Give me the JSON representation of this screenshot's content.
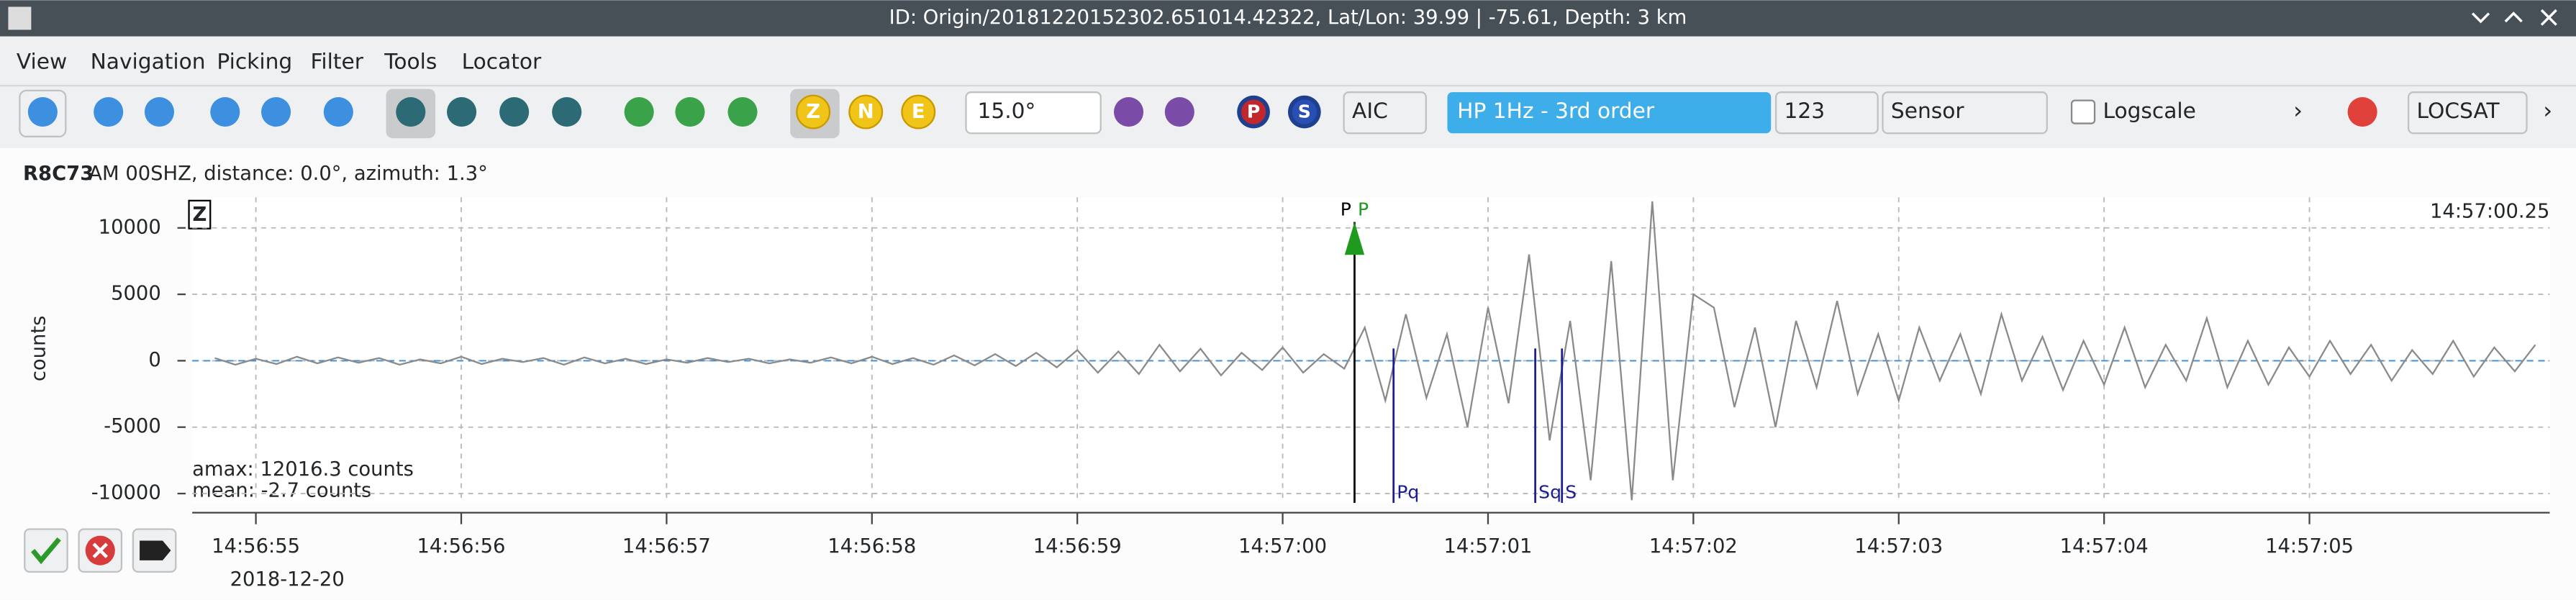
{
  "window": {
    "title": "ID: Origin/20181220152302.651014.42322, Lat/Lon: 39.99 | -75.61, Depth: 3 km",
    "menu": [
      "View",
      "Navigation",
      "Picking",
      "Filter",
      "Tools",
      "Locator"
    ],
    "toolbar": {
      "pick_buttons": [
        "P",
        "S"
      ],
      "component_buttons": [
        "Z",
        "N",
        "E"
      ],
      "spin": "15.0°",
      "picker": "AIC",
      "filter": "HP 1Hz - 3rd order",
      "amp_combo": "123",
      "unit_combo": "Sensor",
      "logscale": "Logscale",
      "locator": "LOCSAT"
    },
    "trace": {
      "station": "R8C73",
      "info": "AM  00SHZ, distance: 0.0°, azimuth: 1.3°"
    }
  },
  "chart_data": {
    "type": "line",
    "component": "Z",
    "ylabel": "counts",
    "time_label": "14:57:00.25",
    "date": "2018-12-20",
    "stats": [
      "amax: 12016.3 counts",
      "mean: -2.7 counts"
    ],
    "color": "#8a8a8a",
    "x": [
      53814.8,
      53814.9,
      53815.0,
      53815.1,
      53815.2,
      53815.3,
      53815.4,
      53815.5,
      53815.6,
      53815.7,
      53815.8,
      53815.9,
      53816.0,
      53816.1,
      53816.2,
      53816.3,
      53816.4,
      53816.5,
      53816.6,
      53816.7,
      53816.8,
      53816.9,
      53817.0,
      53817.1,
      53817.2,
      53817.3,
      53817.4,
      53817.5,
      53817.6,
      53817.7,
      53817.8,
      53817.9,
      53818.0,
      53818.1,
      53818.2,
      53818.3,
      53818.4,
      53818.5,
      53818.6,
      53818.7,
      53818.8,
      53818.9,
      53819.0,
      53819.1,
      53819.2,
      53819.3,
      53819.4,
      53819.5,
      53819.6,
      53819.7,
      53819.8,
      53819.9,
      53820.0,
      53820.1,
      53820.2,
      53820.3,
      53820.4,
      53820.5,
      53820.6,
      53820.7,
      53820.8,
      53820.9,
      53821.0,
      53821.1,
      53821.2,
      53821.3,
      53821.4,
      53821.5,
      53821.6,
      53821.7,
      53821.8,
      53821.9,
      53822.0,
      53822.1,
      53822.2,
      53822.3,
      53822.4,
      53822.5,
      53822.6,
      53822.7,
      53822.8,
      53822.9,
      53823.0,
      53823.1,
      53823.2,
      53823.3,
      53823.4,
      53823.5,
      53823.6,
      53823.7,
      53823.8,
      53823.9,
      53824.0,
      53824.1,
      53824.2,
      53824.3,
      53824.4,
      53824.5,
      53824.6,
      53824.7,
      53824.8,
      53824.9,
      53825.0,
      53825.1,
      53825.2,
      53825.3,
      53825.4,
      53825.5,
      53825.6,
      53825.7,
      53825.8,
      53825.9,
      53826.0,
      53826.1
    ],
    "values": [
      200,
      -300,
      150,
      -250,
      300,
      -200,
      250,
      -150,
      200,
      -300,
      100,
      -200,
      300,
      -250,
      150,
      -100,
      200,
      -300,
      250,
      -200,
      150,
      -250,
      100,
      -150,
      200,
      -100,
      150,
      -200,
      100,
      -150,
      250,
      -200,
      300,
      -250,
      200,
      -300,
      400,
      -350,
      500,
      -400,
      600,
      -500,
      800,
      -900,
      700,
      -1000,
      1200,
      -800,
      900,
      -1100,
      600,
      -700,
      1000,
      -900,
      500,
      -600,
      2500,
      -3000,
      3500,
      -2800,
      2000,
      -5000,
      4000,
      -3200,
      8000,
      -6000,
      3000,
      -9000,
      7500,
      -10500,
      12000,
      -9000,
      5000,
      4000,
      -3500,
      2500,
      -5000,
      3000,
      -2000,
      4500,
      -2500,
      2000,
      -3000,
      2500,
      -1500,
      2000,
      -2500,
      3500,
      -1500,
      1800,
      -2200,
      1500,
      -1800,
      2500,
      -2000,
      1200,
      -1500,
      3200,
      -2000,
      1500,
      -1800,
      1000,
      -1200,
      1500,
      -1000,
      1200,
      -1500,
      800,
      -1000,
      1500,
      -1200,
      1000,
      -800,
      1200
    ],
    "xlim": [
      53814.69,
      53826.17
    ],
    "xticks": [
      {
        "value": 53815,
        "label": "14:56:55"
      },
      {
        "value": 53816,
        "label": "14:56:56"
      },
      {
        "value": 53817,
        "label": "14:56:57"
      },
      {
        "value": 53818,
        "label": "14:56:58"
      },
      {
        "value": 53819,
        "label": "14:56:59"
      },
      {
        "value": 53820,
        "label": "14:57:00"
      },
      {
        "value": 53821,
        "label": "14:57:01"
      },
      {
        "value": 53822,
        "label": "14:57:02"
      },
      {
        "value": 53823,
        "label": "14:57:03"
      },
      {
        "value": 53824,
        "label": "14:57:04"
      },
      {
        "value": 53825,
        "label": "14:57:05"
      }
    ],
    "ylim": [
      -10700,
      12300
    ],
    "yticks": [
      10000,
      5000,
      0,
      -5000,
      -10000
    ],
    "grid": true,
    "picks": [
      {
        "phase": "P",
        "time": 53820.35,
        "color": "#000000"
      },
      {
        "phase": "Pq",
        "time": 53820.54,
        "color": "#1c1c96"
      },
      {
        "phase": "Sq",
        "time": 53821.23,
        "color": "#1c1c96"
      },
      {
        "phase": "S",
        "time": 53821.36,
        "color": "#1c1c96"
      }
    ],
    "theoretical": {
      "phase": "P",
      "time": 53820.35,
      "color": "#1f9a1f"
    }
  }
}
